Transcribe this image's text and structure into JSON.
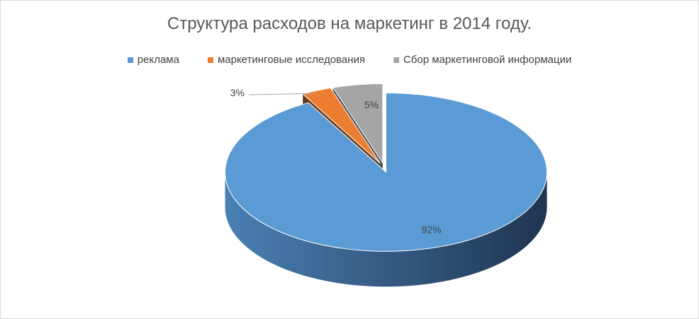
{
  "chart_data": {
    "type": "pie",
    "style": "3d-exploded",
    "title": "Структура расходов на маркетинг в 2014 году.",
    "legend_position": "top",
    "slices": [
      {
        "label": "реклама",
        "value": 92,
        "display": "92%",
        "color": "#5b9bd5"
      },
      {
        "label": "маркетинговые исследования",
        "value": 3,
        "display": "3%",
        "color": "#ed7d31"
      },
      {
        "label": "Сбор маркетинговой информации",
        "value": 5,
        "display": "5%",
        "color": "#a5a5a5"
      }
    ]
  }
}
